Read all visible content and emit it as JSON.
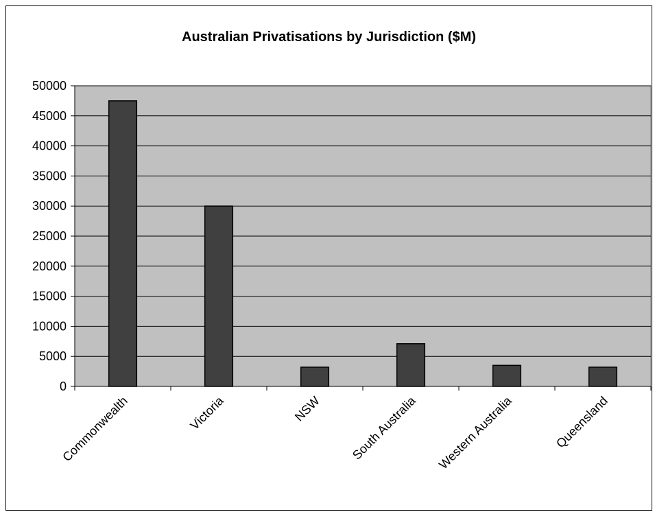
{
  "chart_data": {
    "type": "bar",
    "title": "Australian Privatisations by Jurisdiction ($M)",
    "categories": [
      "Commonwealth",
      "Victoria",
      "NSW",
      "South Australia",
      "Western Australia",
      "Queensland"
    ],
    "values": [
      47500,
      30000,
      3200,
      7100,
      3500,
      3200
    ],
    "xlabel": "",
    "ylabel": "",
    "ylim": [
      0,
      50000
    ],
    "yticks": [
      0,
      5000,
      10000,
      15000,
      20000,
      25000,
      30000,
      35000,
      40000,
      45000,
      50000
    ],
    "grid": true,
    "legend": "none",
    "colors": {
      "bar": "#404040",
      "plot_background": "#c0c0c0",
      "gridline": "#000000"
    }
  }
}
